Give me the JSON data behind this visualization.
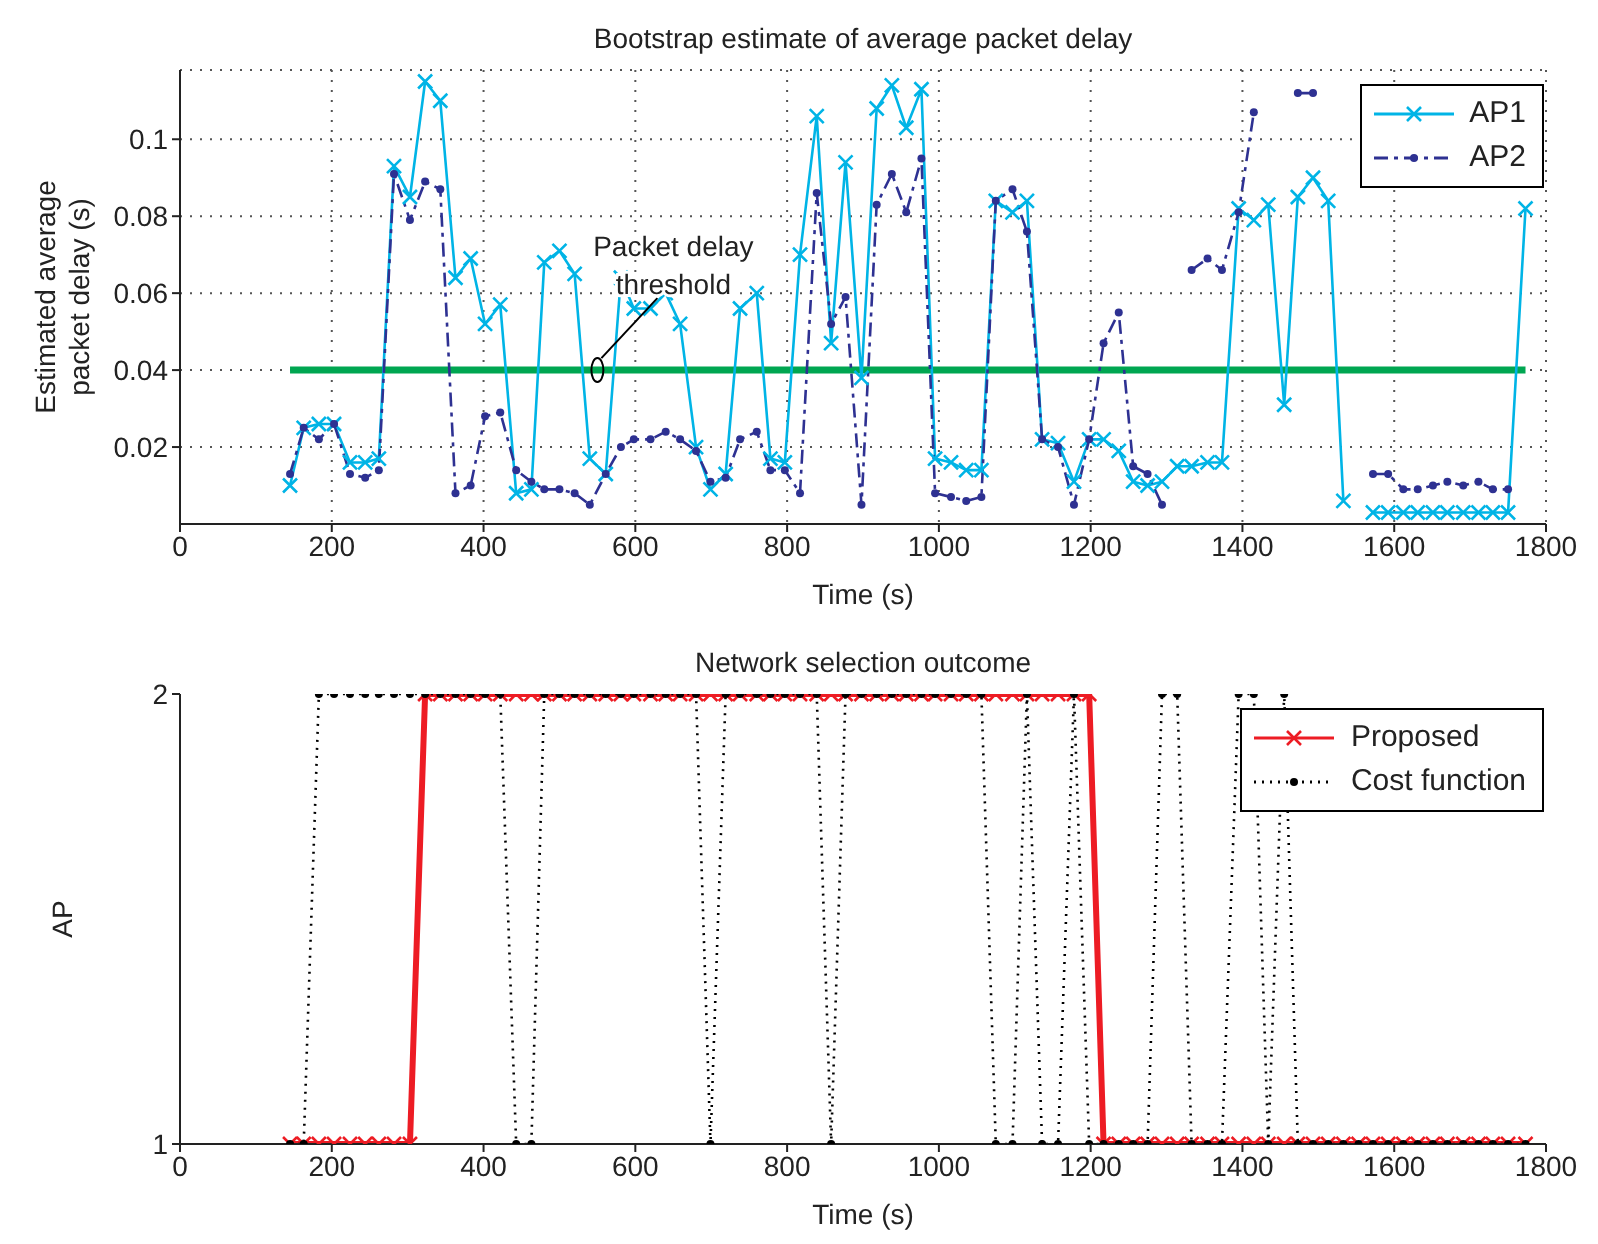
{
  "chart_data": [
    {
      "type": "line",
      "title": "Bootstrap estimate of average packet delay",
      "xlabel": "Time (s)",
      "ylabel": "Estimated average packet delay (s)",
      "x": [
        145,
        163,
        183,
        203,
        224,
        244,
        262,
        282,
        303,
        323,
        343,
        363,
        383,
        402,
        422,
        443,
        463,
        480,
        500,
        520,
        540,
        561,
        581,
        598,
        620,
        640,
        659,
        680,
        699,
        719,
        738,
        760,
        778,
        797,
        817,
        839,
        858,
        877,
        898,
        918,
        938,
        957,
        977,
        995,
        1016,
        1036,
        1056,
        1075,
        1097,
        1116,
        1136,
        1157,
        1178,
        1198,
        1217,
        1237,
        1256,
        1275,
        1294,
        1314,
        1333,
        1354,
        1373,
        1395,
        1415,
        1434,
        1455,
        1473,
        1493,
        1513,
        1533,
        1553,
        1572,
        1592,
        1612,
        1631,
        1651,
        1670,
        1691,
        1711,
        1730,
        1750,
        1773
      ],
      "series": [
        {
          "name": "AP1",
          "color": "#00b4e6",
          "marker": "cross",
          "line_style": "solid",
          "values": [
            0.01,
            0.025,
            0.026,
            0.026,
            0.016,
            0.016,
            0.017,
            0.093,
            0.085,
            0.115,
            0.11,
            0.064,
            0.069,
            0.052,
            0.057,
            0.008,
            0.009,
            0.068,
            0.071,
            0.065,
            0.017,
            0.013,
            0.064,
            0.056,
            0.056,
            0.06,
            0.052,
            0.02,
            0.009,
            0.013,
            0.056,
            0.06,
            0.017,
            0.016,
            0.07,
            0.106,
            0.047,
            0.094,
            0.038,
            0.108,
            0.114,
            0.103,
            0.113,
            0.017,
            0.016,
            0.014,
            0.014,
            0.084,
            0.081,
            0.084,
            0.022,
            0.021,
            0.011,
            0.022,
            0.022,
            0.019,
            0.011,
            0.01,
            0.011,
            0.015,
            0.015,
            0.016,
            0.016,
            0.082,
            0.079,
            0.083,
            0.031,
            0.085,
            0.09,
            0.084,
            0.006,
            null,
            0.003,
            0.003,
            0.003,
            0.003,
            0.003,
            0.003,
            0.003,
            0.003,
            0.003,
            0.003,
            0.082
          ]
        },
        {
          "name": "AP2",
          "color": "#2e3192",
          "marker": "circle",
          "line_style": "dashed",
          "values": [
            0.013,
            0.025,
            0.022,
            0.026,
            0.013,
            0.012,
            0.014,
            0.091,
            0.079,
            0.089,
            0.087,
            0.008,
            0.01,
            0.028,
            0.029,
            0.014,
            0.011,
            0.009,
            0.009,
            0.008,
            0.005,
            0.013,
            0.02,
            0.022,
            0.022,
            0.024,
            0.022,
            0.019,
            0.011,
            0.012,
            0.022,
            0.024,
            0.014,
            0.014,
            0.008,
            0.086,
            0.052,
            0.059,
            0.005,
            0.083,
            0.091,
            0.081,
            0.095,
            0.008,
            0.007,
            0.006,
            0.007,
            0.084,
            0.087,
            0.076,
            0.022,
            0.02,
            0.005,
            0.022,
            0.047,
            0.055,
            0.015,
            0.013,
            0.005,
            null,
            0.066,
            0.069,
            0.066,
            0.081,
            0.107,
            null,
            null,
            0.112,
            0.112,
            null,
            null,
            null,
            0.013,
            0.013,
            0.009,
            0.009,
            0.01,
            0.011,
            0.01,
            0.011,
            0.009,
            0.009,
            null
          ]
        }
      ],
      "xlim": [
        0,
        1800
      ],
      "xticks": [
        0,
        200,
        400,
        600,
        800,
        1000,
        1200,
        1400,
        1600,
        1800
      ],
      "ylim": [
        0,
        0.118
      ],
      "yticks": [
        0.02,
        0.04,
        0.06,
        0.08,
        0.1
      ],
      "ref_lines": [
        {
          "axis": "y",
          "value": 0.04,
          "color": "#00a651"
        }
      ],
      "annotations": [
        {
          "text": "Packet delay threshold",
          "x": 550,
          "y": 0.04
        }
      ],
      "grid": true,
      "legend": "top right"
    },
    {
      "type": "line",
      "title": "Network selection outcome",
      "xlabel": "Time (s)",
      "ylabel": "AP",
      "x": [
        145,
        163,
        183,
        203,
        224,
        244,
        262,
        282,
        303,
        323,
        343,
        363,
        383,
        402,
        422,
        443,
        463,
        480,
        500,
        520,
        540,
        561,
        581,
        598,
        620,
        640,
        659,
        680,
        699,
        719,
        738,
        760,
        778,
        797,
        817,
        839,
        858,
        877,
        898,
        918,
        938,
        957,
        977,
        995,
        1016,
        1036,
        1056,
        1075,
        1097,
        1116,
        1136,
        1157,
        1178,
        1198,
        1217,
        1237,
        1256,
        1275,
        1294,
        1314,
        1333,
        1354,
        1373,
        1395,
        1415,
        1434,
        1455,
        1473,
        1493,
        1513,
        1533,
        1553,
        1572,
        1592,
        1612,
        1631,
        1651,
        1670,
        1691,
        1711,
        1730,
        1750,
        1773
      ],
      "series": [
        {
          "name": "Proposed",
          "color": "#ed1c24",
          "marker": "cross",
          "line_style": "solid",
          "values": [
            1,
            1,
            1,
            1,
            1,
            1,
            1,
            1,
            1,
            2,
            2,
            2,
            2,
            2,
            2,
            2,
            2,
            2,
            2,
            2,
            2,
            2,
            2,
            2,
            2,
            2,
            2,
            2,
            2,
            2,
            2,
            2,
            2,
            2,
            2,
            2,
            2,
            2,
            2,
            2,
            2,
            2,
            2,
            2,
            2,
            2,
            2,
            2,
            2,
            2,
            2,
            2,
            2,
            2,
            1,
            1,
            1,
            1,
            1,
            1,
            1,
            1,
            1,
            1,
            1,
            1,
            1,
            1,
            1,
            1,
            1,
            1,
            1,
            1,
            1,
            1,
            1,
            1,
            1,
            1,
            1,
            1,
            1
          ]
        },
        {
          "name": "Cost function",
          "color": "#000000",
          "marker": "circle",
          "line_style": "dotted",
          "values": [
            1,
            1,
            2,
            2,
            2,
            2,
            2,
            2,
            2,
            2,
            2,
            2,
            2,
            2,
            2,
            1,
            1,
            2,
            2,
            2,
            2,
            2,
            2,
            2,
            2,
            2,
            2,
            2,
            1,
            2,
            2,
            2,
            2,
            2,
            2,
            2,
            1,
            2,
            2,
            2,
            2,
            2,
            2,
            2,
            2,
            2,
            2,
            1,
            1,
            2,
            1,
            1,
            2,
            1,
            1,
            1,
            1,
            1,
            2,
            2,
            1,
            1,
            1,
            2,
            2,
            1,
            2,
            1,
            1,
            1,
            1,
            1,
            1,
            1,
            1,
            1,
            1,
            1,
            1,
            1,
            1,
            1,
            1
          ]
        }
      ],
      "xlim": [
        0,
        1800
      ],
      "xticks": [
        0,
        200,
        400,
        600,
        800,
        1000,
        1200,
        1400,
        1600,
        1800
      ],
      "ylim": [
        1,
        2
      ],
      "yticks": [
        1,
        2
      ],
      "legend": "top right"
    }
  ]
}
